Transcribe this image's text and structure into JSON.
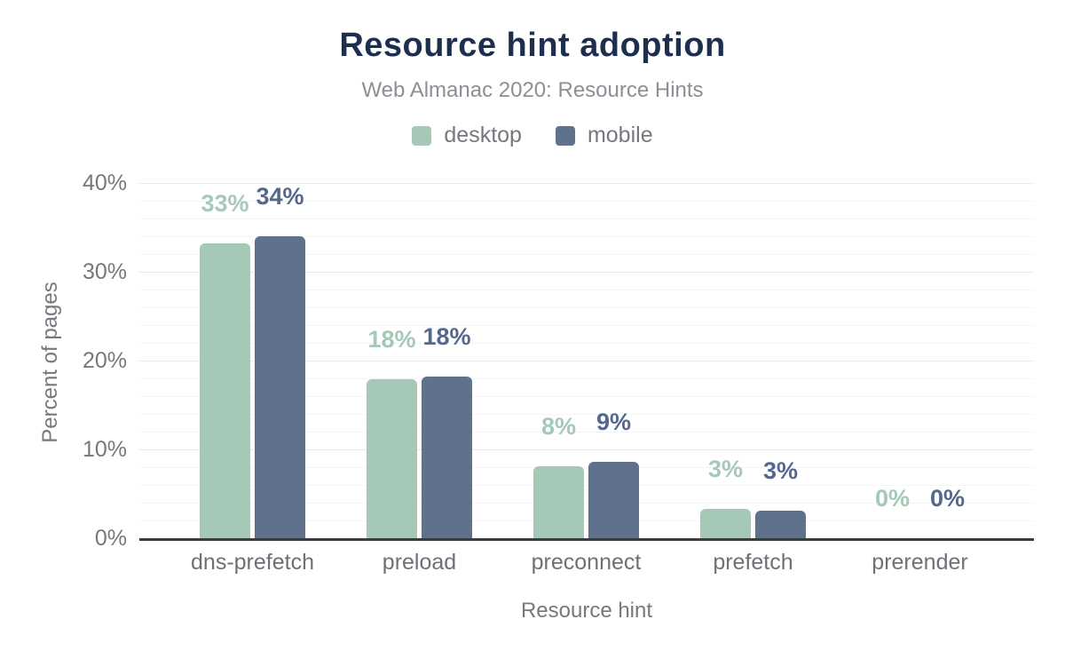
{
  "chart": {
    "title": "Resource hint adoption",
    "subtitle": "Web Almanac 2020: Resource Hints"
  },
  "chart_data": {
    "type": "bar",
    "title": "Resource hint adoption",
    "subtitle": "Web Almanac 2020: Resource Hints",
    "categories": [
      "dns-prefetch",
      "preload",
      "preconnect",
      "prefetch",
      "prerender"
    ],
    "series": [
      {
        "name": "desktop",
        "color": "#a6c9b7",
        "label_color": "#a5c9b6",
        "values": [
          33,
          18,
          8,
          3,
          0
        ],
        "values_precise": [
          33.2,
          17.9,
          8.1,
          3.3,
          0
        ],
        "labels": [
          "33%",
          "18%",
          "8%",
          "3%",
          "0%"
        ]
      },
      {
        "name": "mobile",
        "color": "#5f718c",
        "label_color": "#55678e",
        "values": [
          34,
          18,
          9,
          3,
          0
        ],
        "values_precise": [
          34.0,
          18.2,
          8.6,
          3.1,
          0
        ],
        "labels": [
          "34%",
          "18%",
          "9%",
          "3%",
          "0%"
        ]
      }
    ],
    "xlabel": "Resource hint",
    "ylabel": "Percent of pages",
    "ylim": [
      0,
      40
    ],
    "yticks": [
      {
        "value": 0,
        "label": "0%"
      },
      {
        "value": 10,
        "label": "10%"
      },
      {
        "value": 20,
        "label": "20%"
      },
      {
        "value": 30,
        "label": "30%"
      },
      {
        "value": 40,
        "label": "40%"
      }
    ],
    "minor_tick_step": 2,
    "grid": true,
    "legend_position": "top"
  },
  "palette": {
    "title_color": "#1d2e4e",
    "subtitle_color": "#8c9095",
    "legend_text_color": "#75797e",
    "tick_label_color": "#75787c",
    "category_label_color": "#6d7176",
    "axis_title_color": "#75787c",
    "axis_line_color": "#383d42",
    "major_gridline_color": "#e5e7e9",
    "minor_gridline_color": "#f3f4f5",
    "background": "#ffffff"
  }
}
